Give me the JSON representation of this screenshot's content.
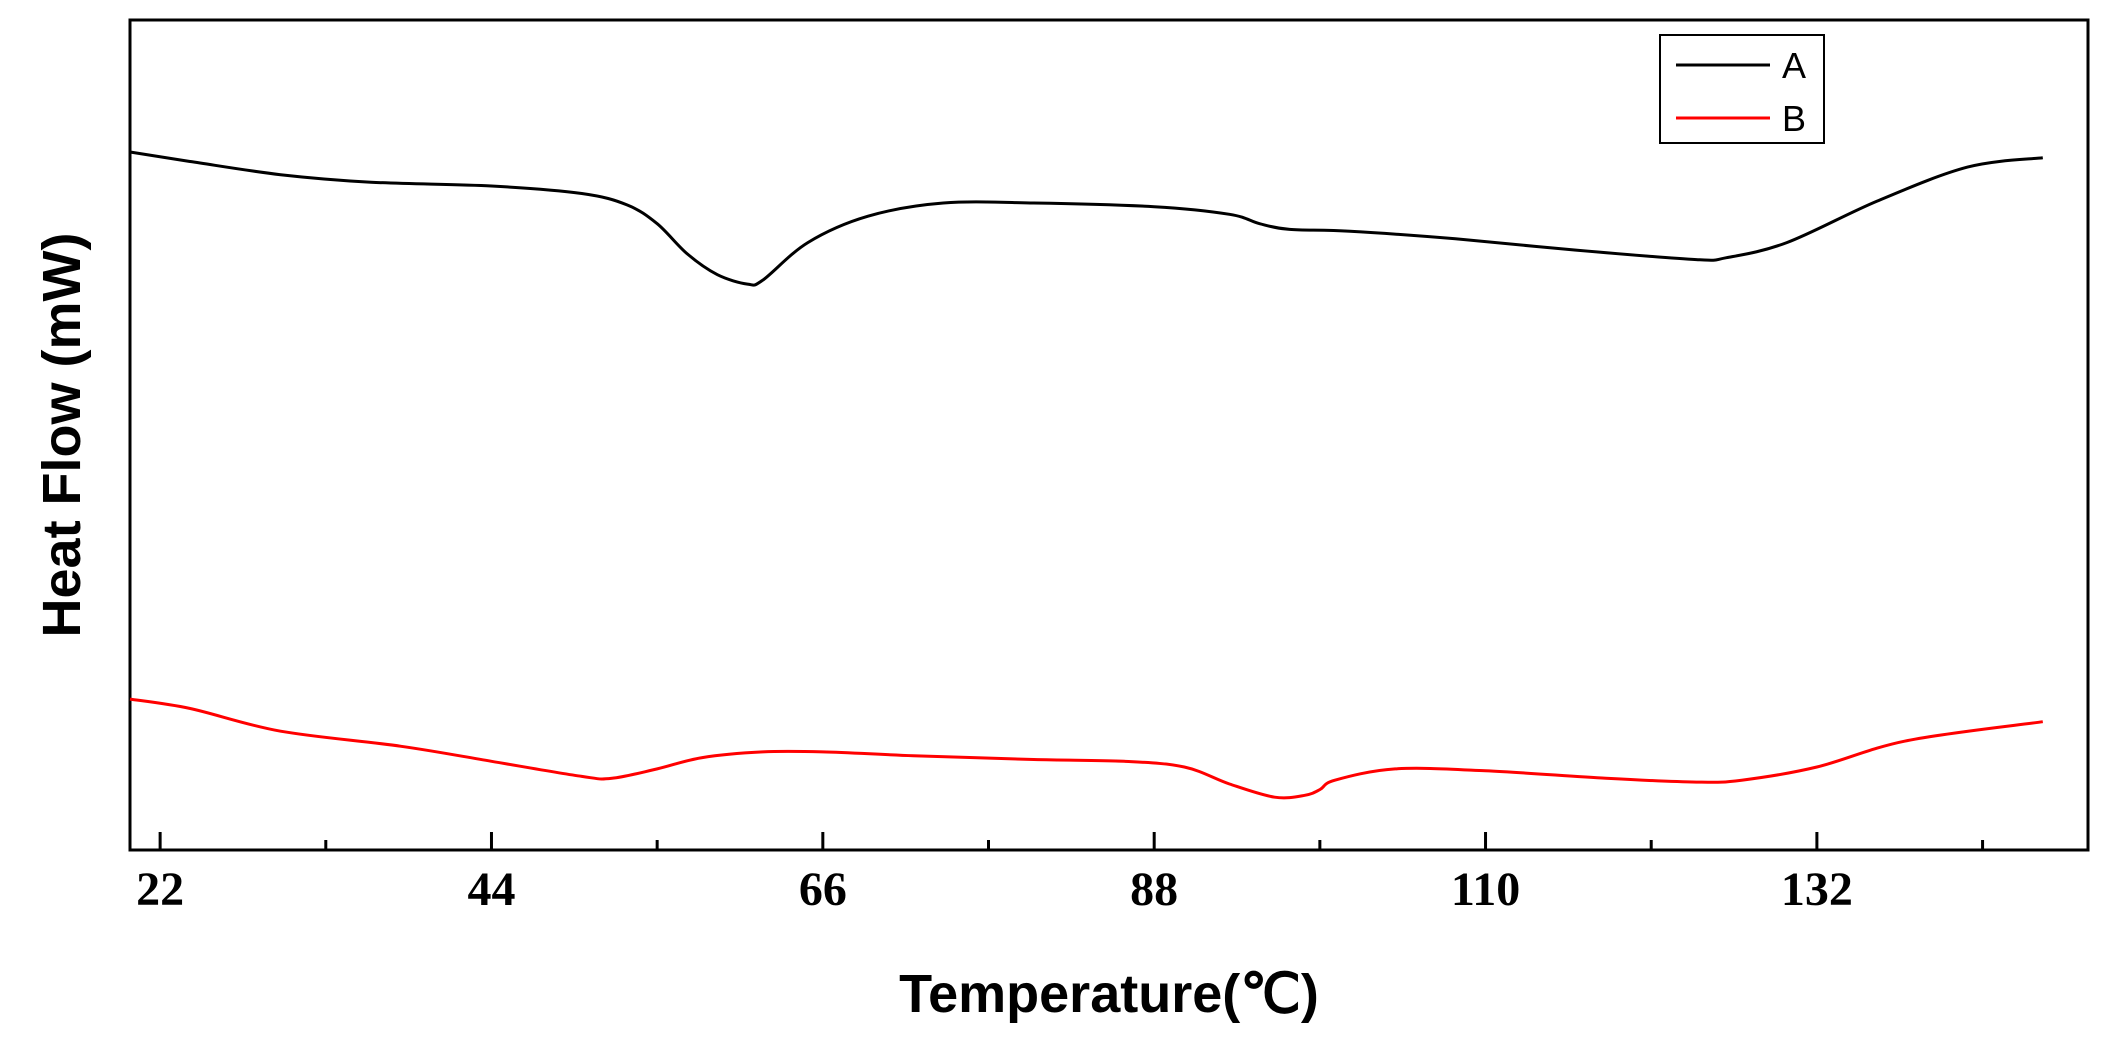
{
  "chart_data": {
    "type": "line",
    "title": "",
    "xlabel": "Temperature(℃)",
    "ylabel": "Heat Flow (mW)",
    "xlim": [
      20,
      150
    ],
    "xticks": [
      22,
      44,
      66,
      88,
      110,
      132
    ],
    "y_tick_labels": false,
    "grid": false,
    "legend_position": "top-right",
    "series": [
      {
        "name": "A",
        "color": "#000000",
        "x": [
          20,
          24,
          30,
          36,
          44,
          50,
          53,
          55,
          57,
          59,
          61,
          62,
          65,
          69,
          74,
          80,
          88,
          93,
          95,
          97,
          101,
          108,
          116,
          124,
          126,
          130,
          136,
          142,
          147
        ],
        "y": [
          0.7,
          0.65,
          0.58,
          0.54,
          0.52,
          0.48,
          0.42,
          0.32,
          0.16,
          0.05,
          0.0,
          0.02,
          0.22,
          0.36,
          0.43,
          0.43,
          0.41,
          0.37,
          0.32,
          0.29,
          0.28,
          0.24,
          0.18,
          0.13,
          0.14,
          0.22,
          0.44,
          0.62,
          0.67
        ]
      },
      {
        "name": "B",
        "color": "#ff0000",
        "x": [
          20,
          24,
          30,
          38,
          44,
          50,
          52,
          55,
          58,
          62,
          66,
          72,
          80,
          86,
          90,
          93,
          96,
          98,
          99,
          100,
          104,
          110,
          118,
          124,
          127,
          132,
          138,
          147
        ],
        "y": [
          -2.2,
          -2.25,
          -2.37,
          -2.45,
          -2.53,
          -2.61,
          -2.62,
          -2.57,
          -2.51,
          -2.48,
          -2.48,
          -2.5,
          -2.52,
          -2.53,
          -2.56,
          -2.65,
          -2.72,
          -2.71,
          -2.68,
          -2.63,
          -2.57,
          -2.58,
          -2.62,
          -2.64,
          -2.63,
          -2.56,
          -2.42,
          -2.32
        ]
      }
    ]
  }
}
